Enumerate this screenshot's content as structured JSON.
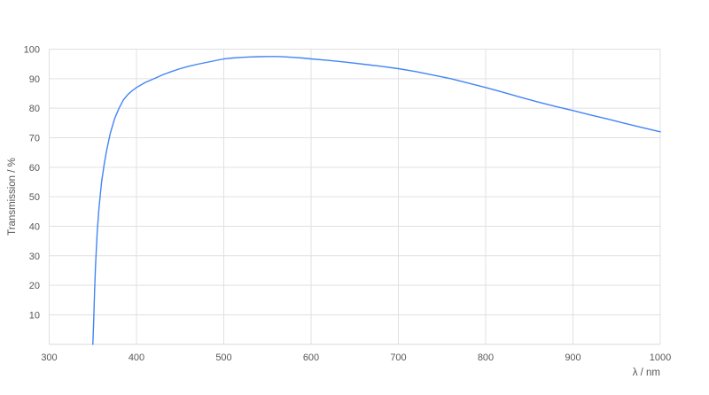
{
  "chart_data": {
    "type": "line",
    "xlabel": "λ / nm",
    "ylabel": "Transmission / %",
    "xlim": [
      300,
      1000
    ],
    "ylim": [
      0,
      100
    ],
    "x_ticks": [
      300,
      400,
      500,
      600,
      700,
      800,
      900,
      1000
    ],
    "y_ticks": [
      10,
      20,
      30,
      40,
      50,
      60,
      70,
      80,
      90,
      100
    ],
    "grid": true,
    "legend_position": "none",
    "series": [
      {
        "name": "transmission",
        "color": "#4285f4",
        "x": [
          350,
          351,
          352,
          353,
          355,
          357,
          360,
          363,
          366,
          370,
          375,
          380,
          385,
          390,
          395,
          400,
          410,
          420,
          430,
          440,
          450,
          460,
          470,
          480,
          490,
          500,
          510,
          520,
          530,
          540,
          550,
          560,
          570,
          580,
          590,
          600,
          620,
          640,
          660,
          680,
          700,
          720,
          740,
          760,
          780,
          800,
          820,
          840,
          860,
          880,
          900,
          920,
          940,
          960,
          980,
          1000
        ],
        "y": [
          0,
          8,
          18,
          26,
          38,
          46,
          55,
          61,
          66,
          71.5,
          76.5,
          80,
          82.8,
          84.6,
          85.9,
          87,
          88.7,
          90,
          91.3,
          92.4,
          93.4,
          94.2,
          94.9,
          95.5,
          96.1,
          96.7,
          97.0,
          97.2,
          97.35,
          97.45,
          97.5,
          97.5,
          97.4,
          97.2,
          97.0,
          96.7,
          96.2,
          95.6,
          94.9,
          94.2,
          93.4,
          92.4,
          91.2,
          90.0,
          88.5,
          87.0,
          85.4,
          83.7,
          82.1,
          80.6,
          79.2,
          77.7,
          76.3,
          74.8,
          73.4,
          72.0
        ]
      }
    ]
  },
  "colors": {
    "background": "#ffffff",
    "grid": "#e0e0e0",
    "baseline": "#d9d9d9",
    "tick_text": "#565759",
    "line": "#4285f4"
  }
}
